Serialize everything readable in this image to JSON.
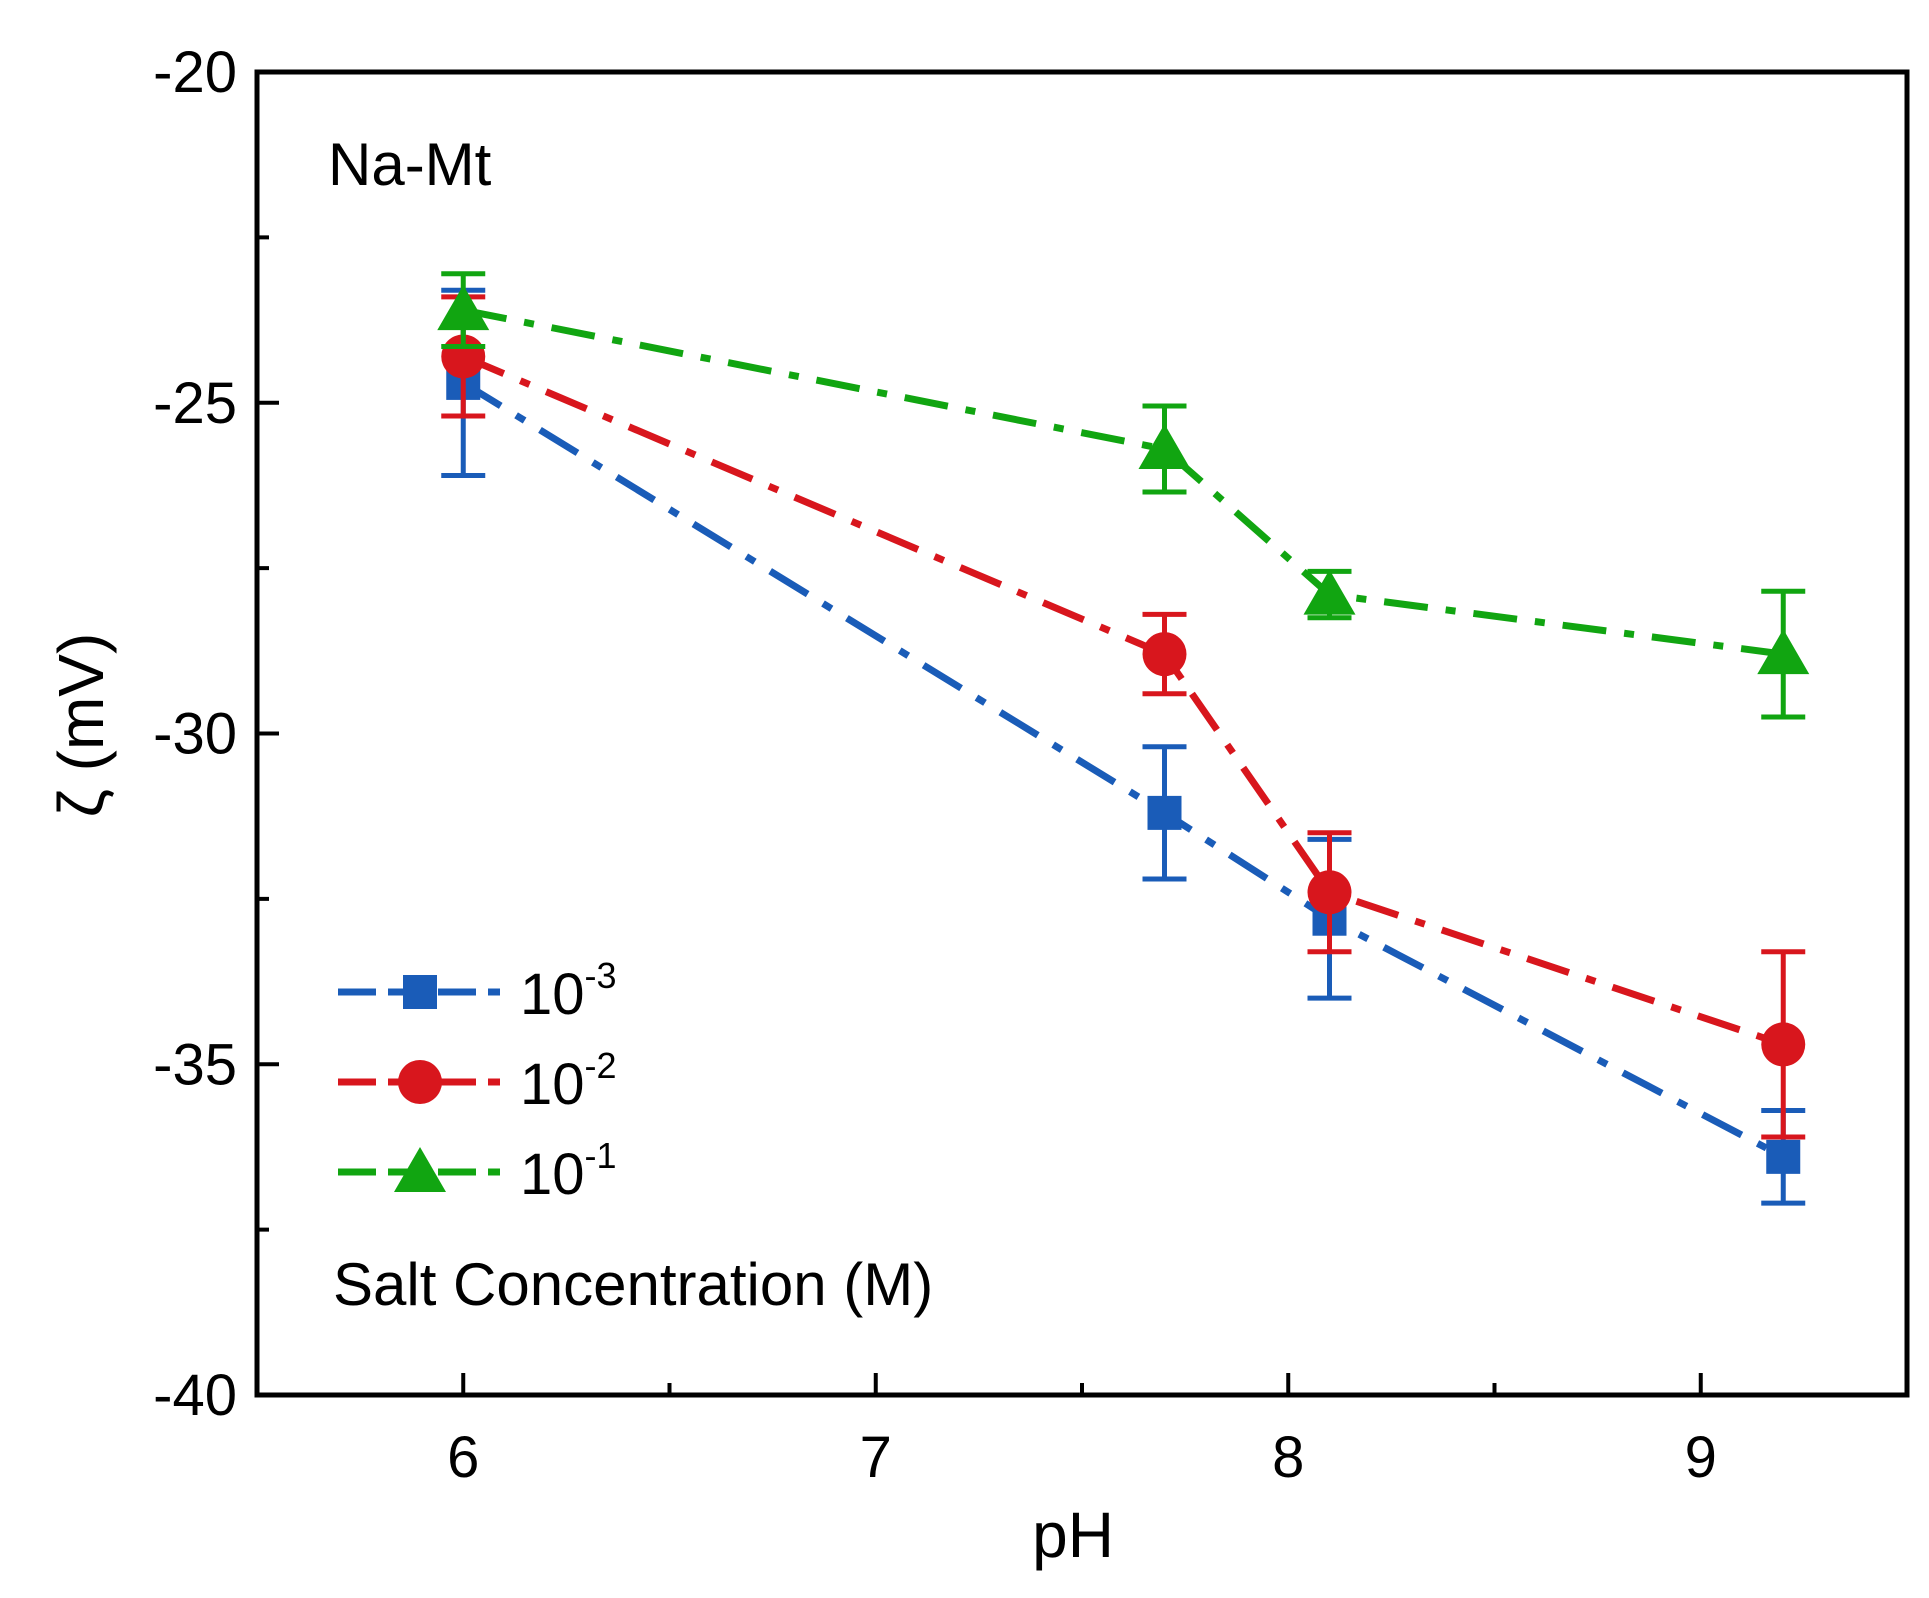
{
  "chart_data": {
    "type": "line",
    "xlabel": "pH",
    "ylabel": "ζ (mV)",
    "xlim": [
      5.5,
      9.5
    ],
    "ylim": [
      -40,
      -20
    ],
    "x_ticks": [
      6,
      7,
      8,
      9
    ],
    "y_ticks": [
      -20,
      -25,
      -30,
      -35,
      -40
    ],
    "x_tick_labels": [
      "6",
      "7",
      "8",
      "9"
    ],
    "y_tick_labels": [
      "-20",
      "-25",
      "-30",
      "-35",
      "-40"
    ],
    "minor_x_ticks": [
      6.5,
      7.5,
      8.5
    ],
    "minor_y_ticks": [
      -22.5,
      -27.5,
      -32.5,
      -37.5
    ],
    "annotation": "Na-Mt",
    "legend_title": "Salt Concentration (M)",
    "legend_position": "bottom-left",
    "grid": false,
    "series": [
      {
        "name": "10-3",
        "label_base": "10",
        "label_exp": "-3",
        "color": "#1a5cb8",
        "marker": "square",
        "line_style": "dash-dot",
        "x": [
          6.0,
          7.7,
          8.1,
          9.2
        ],
        "y": [
          -24.7,
          -31.2,
          -32.8,
          -36.4
        ],
        "err": [
          1.4,
          1.0,
          1.2,
          0.7
        ]
      },
      {
        "name": "10-2",
        "label_base": "10",
        "label_exp": "-2",
        "color": "#d8161d",
        "marker": "circle",
        "line_style": "dash-dot",
        "x": [
          6.0,
          7.7,
          8.1,
          9.2
        ],
        "y": [
          -24.3,
          -28.8,
          -32.4,
          -34.7
        ],
        "err": [
          0.9,
          0.6,
          0.9,
          1.4
        ]
      },
      {
        "name": "10-1",
        "label_base": "10",
        "label_exp": "-1",
        "color": "#11a511",
        "marker": "triangle",
        "line_style": "dash-dot",
        "x": [
          6.0,
          7.7,
          8.1,
          9.2
        ],
        "y": [
          -23.6,
          -25.7,
          -27.9,
          -28.8
        ],
        "err": [
          0.55,
          0.65,
          0.35,
          0.95
        ]
      }
    ]
  }
}
